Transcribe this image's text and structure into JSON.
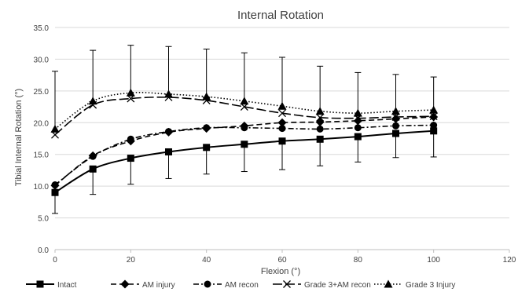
{
  "chart_data": {
    "type": "line",
    "title": "Internal Rotation",
    "xlabel": "Flexion (°)",
    "ylabel": "Tibial Internal Rotation (°)",
    "xlim": [
      0,
      120
    ],
    "ylim": [
      0,
      35
    ],
    "x_ticks": [
      "0",
      "20",
      "40",
      "60",
      "80",
      "100",
      "120"
    ],
    "y_ticks": [
      "0.0",
      "5.0",
      "10.0",
      "15.0",
      "20.0",
      "25.0",
      "30.0",
      "35.0"
    ],
    "grid": true,
    "legend_position": "bottom",
    "x": [
      0,
      10,
      20,
      30,
      40,
      50,
      60,
      70,
      80,
      90,
      100
    ],
    "series": [
      {
        "name": "Intact",
        "marker": "square",
        "dash": "solid",
        "values": [
          9.0,
          12.7,
          14.4,
          15.4,
          16.1,
          16.6,
          17.1,
          17.4,
          17.8,
          18.3,
          18.7
        ],
        "error": [
          3.3,
          4.0,
          4.1,
          4.2,
          4.2,
          4.3,
          4.5,
          4.2,
          4.0,
          3.8,
          4.1
        ]
      },
      {
        "name": "AM injury",
        "marker": "diamond",
        "dash": "dash",
        "values": [
          10.1,
          14.8,
          17.1,
          18.5,
          19.1,
          19.5,
          20.0,
          20.1,
          20.3,
          20.6,
          20.9
        ],
        "error": []
      },
      {
        "name": "AM recon",
        "marker": "circle",
        "dash": "dashdot",
        "values": [
          10.2,
          14.7,
          17.4,
          18.6,
          19.2,
          19.2,
          19.1,
          19.0,
          19.2,
          19.5,
          19.6
        ],
        "error": []
      },
      {
        "name": "Grade 3+AM recon",
        "marker": "x",
        "dash": "longdash",
        "values": [
          18.1,
          22.8,
          23.8,
          24.0,
          23.5,
          22.5,
          21.5,
          20.8,
          20.7,
          20.9,
          21.0
        ],
        "error": []
      },
      {
        "name": "Grade 3 Injury",
        "marker": "triangle",
        "dash": "dotted",
        "values": [
          19.0,
          23.4,
          24.7,
          24.5,
          24.1,
          23.4,
          22.6,
          21.8,
          21.5,
          21.8,
          22.0
        ],
        "error": [
          9.1,
          8.0,
          7.5,
          7.5,
          7.5,
          7.6,
          7.7,
          7.1,
          6.4,
          5.8,
          5.2
        ]
      }
    ]
  }
}
